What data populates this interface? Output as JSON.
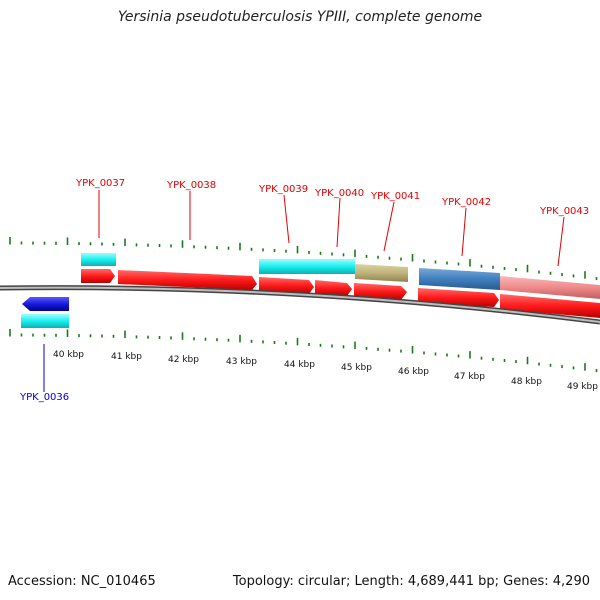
{
  "title": "Yersinia pseudotuberculosis YPIII, complete genome",
  "footer": {
    "accession": "Accession: NC_010465",
    "stats": "Topology: circular; Length: 4,689,441 bp; Genes: 4,290"
  },
  "scale": {
    "labels": [
      "40 kbp",
      "41 kbp",
      "42 kbp",
      "43 kbp",
      "44 kbp",
      "45 kbp",
      "46 kbp",
      "47 kbp",
      "48 kbp",
      "49 kbp"
    ]
  },
  "genes_top": [
    {
      "name": "YPK_0037"
    },
    {
      "name": "YPK_0038"
    },
    {
      "name": "YPK_0039"
    },
    {
      "name": "YPK_0040"
    },
    {
      "name": "YPK_0041"
    },
    {
      "name": "YPK_0042"
    },
    {
      "name": "YPK_0043"
    }
  ],
  "genes_bottom": [
    {
      "name": "YPK_0036"
    }
  ],
  "colors": {
    "forward_cds": "#ff1a1a",
    "reverse_cds": "#1a1acc",
    "feature_cyan": "#19f0f0",
    "feature_khaki": "#bfb27a",
    "feature_steelblue": "#3f7fbf",
    "feature_pink": "#ef8a8a",
    "tick": "#1a7a1a",
    "backbone": "#808080"
  }
}
